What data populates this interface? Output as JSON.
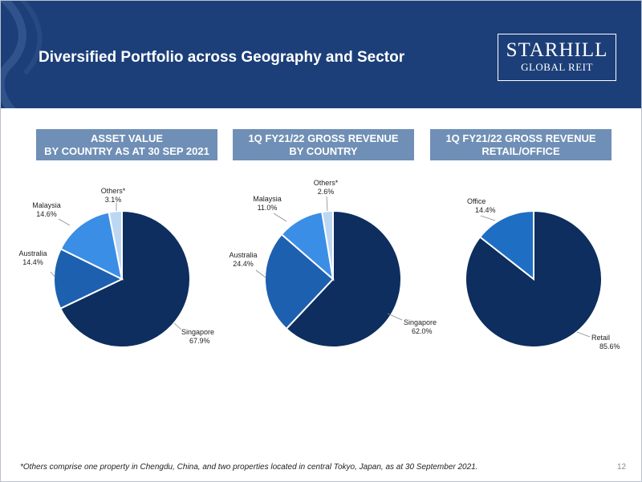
{
  "header": {
    "title": "Diversified Portfolio across Geography and Sector",
    "logo_line1": "STARHILL",
    "logo_line2": "GLOBAL REIT"
  },
  "panels": [
    {
      "line1": "ASSET VALUE",
      "line2": "BY COUNTRY AS AT 30 SEP 2021"
    },
    {
      "line1": "1Q FY21/22 GROSS REVENUE",
      "line2": "BY COUNTRY"
    },
    {
      "line1": "1Q FY21/22 GROSS REVENUE",
      "line2": "RETAIL/OFFICE"
    }
  ],
  "chart_data": [
    {
      "type": "pie",
      "title": "ASSET VALUE BY COUNTRY AS AT 30 SEP 2021",
      "slices": [
        {
          "name": "Singapore",
          "label": "67.9%",
          "value": 67.9,
          "color": "#0d2e5e"
        },
        {
          "name": "Australia",
          "label": "14.4%",
          "value": 14.4,
          "color": "#1e60b0"
        },
        {
          "name": "Malaysia",
          "label": "14.6%",
          "value": 14.6,
          "color": "#3a8ee6"
        },
        {
          "name": "Others*",
          "label": "3.1%",
          "value": 3.1,
          "color": "#bcd7f2"
        }
      ]
    },
    {
      "type": "pie",
      "title": "1Q FY21/22 GROSS REVENUE BY COUNTRY",
      "slices": [
        {
          "name": "Singapore",
          "label": "62.0%",
          "value": 62.0,
          "color": "#0d2e5e"
        },
        {
          "name": "Australia",
          "label": "24.4%",
          "value": 24.4,
          "color": "#1e60b0"
        },
        {
          "name": "Malaysia",
          "label": "11.0%",
          "value": 11.0,
          "color": "#3a8ee6"
        },
        {
          "name": "Others*",
          "label": "2.6%",
          "value": 2.6,
          "color": "#bcd7f2"
        }
      ]
    },
    {
      "type": "pie",
      "title": "1Q FY21/22 GROSS REVENUE RETAIL/OFFICE",
      "slices": [
        {
          "name": "Retail",
          "label": "85.6%",
          "value": 85.6,
          "color": "#0d2e5e"
        },
        {
          "name": "Office",
          "label": "14.4%",
          "value": 14.4,
          "color": "#1e6fc4"
        }
      ]
    }
  ],
  "footnote": "*Others comprise one property in Chengdu, China, and two properties located in central Tokyo, Japan, as at 30 September 2021.",
  "page_number": "12"
}
